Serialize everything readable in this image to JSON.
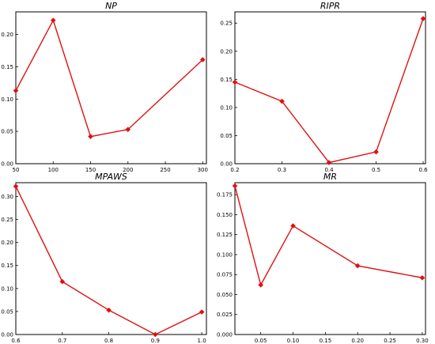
{
  "chart_data": [
    {
      "type": "line",
      "title": "NP",
      "xlabel": "",
      "ylabel": "",
      "xlim": [
        50,
        305
      ],
      "ylim": [
        0.0,
        0.235
      ],
      "xticks": [
        50,
        100,
        150,
        200,
        250,
        300
      ],
      "xtick_labels": [
        "50",
        "100",
        "150",
        "200",
        "250",
        "300"
      ],
      "yticks": [
        0.0,
        0.05,
        0.1,
        0.15,
        0.2
      ],
      "ytick_labels": [
        "0.00",
        "0.05",
        "0.10",
        "0.15",
        "0.20"
      ],
      "color": "#e01010",
      "grid": false,
      "x": [
        50,
        100,
        150,
        200,
        300
      ],
      "y": [
        0.113,
        0.222,
        0.042,
        0.053,
        0.161
      ]
    },
    {
      "type": "line",
      "title": "RIPR",
      "xlabel": "",
      "ylabel": "",
      "xlim": [
        0.2,
        0.605
      ],
      "ylim": [
        0.0,
        0.27
      ],
      "xticks": [
        0.2,
        0.3,
        0.4,
        0.5,
        0.6
      ],
      "xtick_labels": [
        "0.2",
        "0.3",
        "0.4",
        "0.5",
        "0.6"
      ],
      "yticks": [
        0.0,
        0.05,
        0.1,
        0.15,
        0.2,
        0.25
      ],
      "ytick_labels": [
        "0.00",
        "0.05",
        "0.10",
        "0.15",
        "0.20",
        "0.25"
      ],
      "color": "#e01010",
      "grid": false,
      "x": [
        0.2,
        0.3,
        0.4,
        0.5,
        0.6
      ],
      "y": [
        0.145,
        0.111,
        0.002,
        0.021,
        0.258
      ]
    },
    {
      "type": "line",
      "title": "MPAWS",
      "xlabel": "",
      "ylabel": "",
      "xlim": [
        0.6,
        1.01
      ],
      "ylim": [
        0.0,
        0.33
      ],
      "xticks": [
        0.6,
        0.7,
        0.8,
        0.9,
        1.0
      ],
      "xtick_labels": [
        "0.6",
        "0.7",
        "0.8",
        "0.9",
        "1.0"
      ],
      "yticks": [
        0.0,
        0.05,
        0.1,
        0.15,
        0.2,
        0.25,
        0.3
      ],
      "ytick_labels": [
        "0.00",
        "0.05",
        "0.10",
        "0.15",
        "0.20",
        "0.25",
        "0.30"
      ],
      "color": "#e01010",
      "grid": false,
      "x": [
        0.6,
        0.7,
        0.8,
        0.9,
        1.0
      ],
      "y": [
        0.322,
        0.115,
        0.053,
        0.0,
        0.049
      ]
    },
    {
      "type": "line",
      "title": "MR",
      "xlabel": "",
      "ylabel": "",
      "xlim": [
        0.01,
        0.305
      ],
      "ylim": [
        0.0,
        0.19
      ],
      "xticks": [
        0.05,
        0.1,
        0.15,
        0.2,
        0.25,
        0.3
      ],
      "xtick_labels": [
        "0.05",
        "0.10",
        "0.15",
        "0.20",
        "0.25",
        "0.30"
      ],
      "yticks": [
        0.0,
        0.025,
        0.05,
        0.075,
        0.1,
        0.125,
        0.15,
        0.175
      ],
      "ytick_labels": [
        "0.000",
        "0.025",
        "0.050",
        "0.075",
        "0.100",
        "0.125",
        "0.150",
        "0.175"
      ],
      "color": "#e01010",
      "grid": false,
      "x": [
        0.01,
        0.05,
        0.1,
        0.2,
        0.3
      ],
      "y": [
        0.186,
        0.062,
        0.136,
        0.086,
        0.071
      ]
    }
  ]
}
